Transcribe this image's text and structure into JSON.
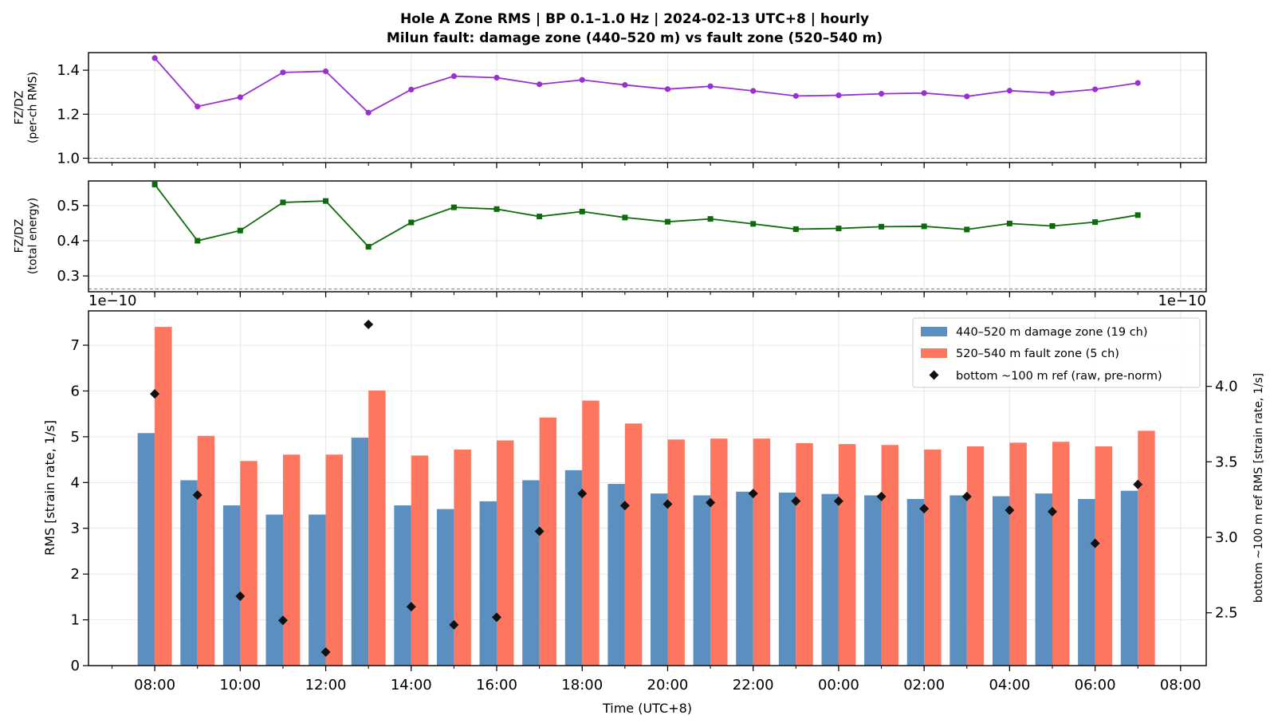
{
  "title_line1": "Hole A Zone RMS  |  BP 0.1–1.0 Hz  |  2024-02-13 UTC+8  |  hourly",
  "title_line2": "Milun fault: damage zone (440–520 m) vs fault zone (520–540 m)",
  "colors": {
    "damage_zone": "#5b8fbf",
    "fault_zone": "#fe7660",
    "ratio_rms": "#9b30d0",
    "ratio_energy": "#0d6b0d",
    "ref": "#111111"
  },
  "chart_data": [
    {
      "type": "line",
      "panel": "top",
      "ylabel": "FZ/DZ\n(per-ch RMS)",
      "ylim": [
        0.98,
        1.48
      ],
      "yticks": [
        1.0,
        1.2,
        1.4
      ],
      "reference_line": 1.0,
      "x_hours": [
        0,
        1,
        2,
        3,
        4,
        5,
        6,
        7,
        8,
        9,
        10,
        11,
        12,
        13,
        14,
        15,
        16,
        17,
        18,
        19,
        20,
        21,
        22,
        23
      ],
      "values": [
        1.455,
        1.235,
        1.277,
        1.39,
        1.395,
        1.207,
        1.312,
        1.373,
        1.366,
        1.336,
        1.356,
        1.333,
        1.314,
        1.327,
        1.306,
        1.283,
        1.286,
        1.293,
        1.296,
        1.281,
        1.307,
        1.296,
        1.313,
        1.342
      ]
    },
    {
      "type": "line",
      "panel": "middle",
      "ylabel": "FZ/DZ\n(total energy)",
      "ylim": [
        0.255,
        0.57
      ],
      "yticks": [
        0.3,
        0.4,
        0.5
      ],
      "reference_line": 0.263,
      "x_hours": [
        0,
        1,
        2,
        3,
        4,
        5,
        6,
        7,
        8,
        9,
        10,
        11,
        12,
        13,
        14,
        15,
        16,
        17,
        18,
        19,
        20,
        21,
        22,
        23
      ],
      "values": [
        0.56,
        0.4,
        0.429,
        0.509,
        0.513,
        0.383,
        0.452,
        0.495,
        0.49,
        0.469,
        0.483,
        0.466,
        0.454,
        0.462,
        0.448,
        0.433,
        0.435,
        0.44,
        0.441,
        0.432,
        0.449,
        0.442,
        0.453,
        0.473
      ]
    },
    {
      "type": "bar",
      "panel": "bottom",
      "xlabel": "Time (UTC+8)",
      "ylabel": "RMS  [strain rate, 1/s]",
      "ylabel_right": "bottom ~100 m ref RMS  [strain rate, 1/s]",
      "y_offset_label_left": "1e−10",
      "y_offset_label_right": "1e−10",
      "ylim": [
        0,
        7.75
      ],
      "yticks": [
        0,
        1,
        2,
        3,
        4,
        5,
        6,
        7
      ],
      "ylim_right": [
        2.15,
        4.5
      ],
      "yticks_right": [
        2.5,
        3.0,
        3.5,
        4.0
      ],
      "xlim_hours": [
        -1.55,
        24.6
      ],
      "xticks_hours": [
        0,
        2,
        4,
        6,
        8,
        10,
        12,
        14,
        16,
        18,
        20,
        22,
        24
      ],
      "xtick_labels": [
        "08:00",
        "10:00",
        "12:00",
        "14:00",
        "16:00",
        "18:00",
        "20:00",
        "22:00",
        "00:00",
        "02:00",
        "04:00",
        "06:00",
        "08:00"
      ],
      "legend_position": "upper right",
      "series": [
        {
          "name": "440–520 m  damage zone (19 ch)",
          "marker": "bar",
          "axis": "left",
          "values": [
            5.08,
            4.05,
            3.5,
            3.3,
            3.3,
            4.98,
            3.5,
            3.42,
            3.59,
            4.05,
            4.27,
            3.97,
            3.76,
            3.72,
            3.8,
            3.78,
            3.75,
            3.72,
            3.64,
            3.72,
            3.7,
            3.76,
            3.64,
            3.82
          ]
        },
        {
          "name": "520–540 m  fault zone (5 ch)",
          "marker": "bar",
          "axis": "left",
          "values": [
            7.4,
            5.02,
            4.47,
            4.61,
            4.61,
            6.01,
            4.59,
            4.72,
            4.92,
            5.42,
            5.79,
            5.29,
            4.94,
            4.96,
            4.96,
            4.86,
            4.84,
            4.82,
            4.72,
            4.79,
            4.87,
            4.89,
            4.79,
            5.13
          ]
        },
        {
          "name": "bottom ~100 m ref (raw, pre-norm)",
          "marker": "diamond",
          "axis": "right",
          "values": [
            3.95,
            3.28,
            2.61,
            2.45,
            2.24,
            4.41,
            2.54,
            2.42,
            2.47,
            3.04,
            3.29,
            3.21,
            3.22,
            3.23,
            3.29,
            3.24,
            3.24,
            3.27,
            3.19,
            3.27,
            3.18,
            3.17,
            2.96,
            3.35
          ]
        }
      ]
    }
  ]
}
